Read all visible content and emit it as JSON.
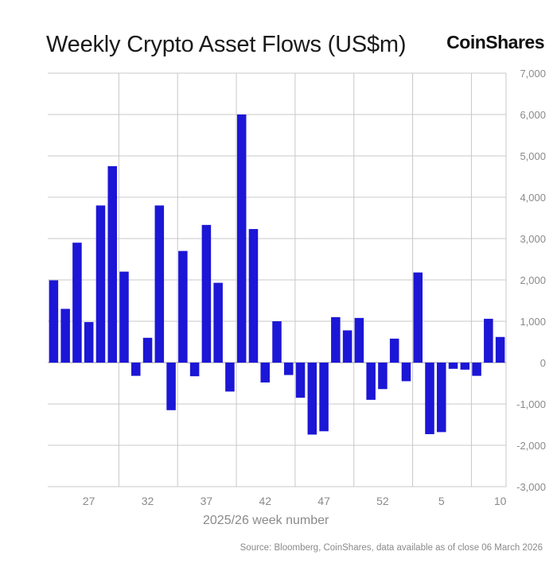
{
  "header": {
    "title": "Weekly Crypto Asset Flows (US$m)",
    "brand": "CoinShares"
  },
  "footer": {
    "source": "Source: Bloomberg, CoinShares, data available as of close 06 March 2026"
  },
  "colors": {
    "bar": "#1c16d6",
    "grid": "#c8c8c8",
    "axis_text": "#8a8a8a"
  },
  "chart_data": {
    "type": "bar",
    "title": "Weekly Crypto Asset Flows (US$m)",
    "xlabel": "2025/26 week number",
    "ylabel": "",
    "ylim": [
      -3000,
      7000
    ],
    "yticks": [
      7000,
      6000,
      5000,
      4000,
      3000,
      2000,
      1000,
      0,
      -1000,
      -2000,
      -3000
    ],
    "ytick_labels": [
      "7,000",
      "6,000",
      "5,000",
      "4,000",
      "3,000",
      "2,000",
      "1,000",
      "0",
      "-1,000",
      "-2,000",
      "-3,000"
    ],
    "yaxis_position": "right",
    "grid": true,
    "categories": [
      "24",
      "25",
      "26",
      "27",
      "28",
      "29",
      "30",
      "31",
      "32",
      "33",
      "34",
      "35",
      "36",
      "37",
      "38",
      "39",
      "40",
      "41",
      "42",
      "43",
      "44",
      "45",
      "46",
      "47",
      "48",
      "49",
      "50",
      "51",
      "52",
      "1",
      "2",
      "3",
      "4",
      "5",
      "6",
      "7",
      "8",
      "9",
      "10"
    ],
    "xtick_labels": [
      {
        "index": 3,
        "label": "27"
      },
      {
        "index": 8,
        "label": "32"
      },
      {
        "index": 13,
        "label": "37"
      },
      {
        "index": 18,
        "label": "42"
      },
      {
        "index": 23,
        "label": "47"
      },
      {
        "index": 28,
        "label": "52"
      },
      {
        "index": 33,
        "label": "5"
      },
      {
        "index": 38,
        "label": "10"
      }
    ],
    "values": [
      1990,
      1300,
      2900,
      980,
      3800,
      4750,
      2200,
      -320,
      600,
      3800,
      -1150,
      2700,
      -330,
      3330,
      1930,
      -700,
      6000,
      3230,
      -480,
      1000,
      -300,
      -850,
      -1740,
      -1660,
      1100,
      780,
      1080,
      -900,
      -640,
      580,
      -450,
      2180,
      -1730,
      -1680,
      -150,
      -170,
      -320,
      1060,
      620
    ],
    "series": [
      {
        "name": "",
        "values": [
          1990,
          1300,
          2900,
          980,
          3800,
          4750,
          2200,
          -320,
          600,
          3800,
          -1150,
          2700,
          -330,
          3330,
          1930,
          -700,
          6000,
          3230,
          -480,
          1000,
          -300,
          -850,
          -1740,
          -1660,
          1100,
          780,
          1080,
          -900,
          -640,
          580,
          -450,
          2180,
          -1730,
          -1680,
          -150,
          -170,
          -320,
          1060,
          620
        ]
      }
    ]
  }
}
